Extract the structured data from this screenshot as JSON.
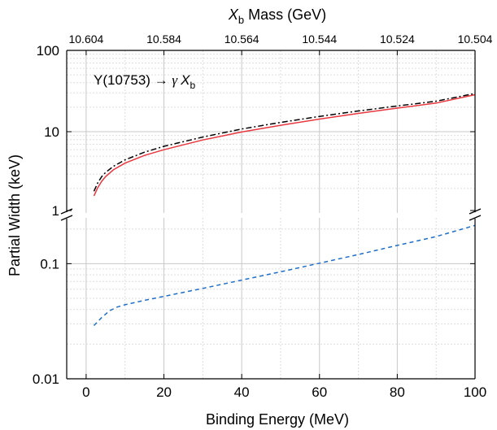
{
  "chart_data": {
    "type": "line",
    "annotation": {
      "prefix": "Υ(10753) → ",
      "gamma": "γ",
      "x": "X",
      "sub": "b"
    },
    "xlabel": "Binding Energy (MeV)",
    "ylabel": "Partial Width (keV)",
    "top_axis": {
      "label_symbol": "X",
      "label_sub": "b",
      "label_rest": " Mass (GeV)",
      "ticks": [
        {
          "at": 0,
          "label": "10.604"
        },
        {
          "at": 20,
          "label": "10.584"
        },
        {
          "at": 40,
          "label": "10.564"
        },
        {
          "at": 60,
          "label": "10.544"
        },
        {
          "at": 80,
          "label": "10.524"
        },
        {
          "at": 100,
          "label": "10.504"
        }
      ]
    },
    "xlim": [
      -5,
      100
    ],
    "x_ticks": [
      {
        "v": 0,
        "label": "0"
      },
      {
        "v": 20,
        "label": "20"
      },
      {
        "v": 40,
        "label": "40"
      },
      {
        "v": 60,
        "label": "60"
      },
      {
        "v": 80,
        "label": "80"
      },
      {
        "v": 100,
        "label": "100"
      }
    ],
    "y_scale": "log, broken axis",
    "y_upper_range": [
      1,
      100
    ],
    "y_lower_range": [
      0.01,
      0.25
    ],
    "y_ticks": [
      {
        "v": 100,
        "label": "100",
        "panel": "upper"
      },
      {
        "v": 10,
        "label": "10",
        "panel": "upper"
      },
      {
        "v": 1,
        "label": "1",
        "panel": "upper"
      },
      {
        "v": 0.1,
        "label": "0.1",
        "panel": "lower"
      },
      {
        "v": 0.01,
        "label": "0.01",
        "panel": "lower"
      }
    ],
    "grid": true,
    "series": [
      {
        "style": "dash-dot",
        "color": "#000000",
        "panel": "upper",
        "x": [
          2,
          3,
          4,
          5,
          7,
          10,
          15,
          20,
          30,
          40,
          50,
          60,
          70,
          80,
          90,
          100
        ],
        "y": [
          1.85,
          2.35,
          2.8,
          3.15,
          3.75,
          4.5,
          5.6,
          6.6,
          8.6,
          10.8,
          13.0,
          15.4,
          18.0,
          20.7,
          23.7,
          29.5
        ]
      },
      {
        "style": "solid",
        "color": "#e8373e",
        "panel": "upper",
        "x": [
          2,
          3,
          4,
          5,
          7,
          10,
          15,
          20,
          30,
          40,
          50,
          60,
          70,
          80,
          90,
          100
        ],
        "y": [
          1.62,
          2.05,
          2.45,
          2.8,
          3.4,
          4.1,
          5.1,
          6.0,
          7.9,
          9.9,
          12.0,
          14.3,
          16.8,
          19.5,
          22.5,
          28.5
        ]
      },
      {
        "style": "dashed",
        "color": "#1f6fc9",
        "panel": "lower",
        "x": [
          2,
          4,
          6,
          8,
          10,
          15,
          20,
          30,
          40,
          50,
          60,
          70,
          80,
          90,
          100
        ],
        "y": [
          0.029,
          0.034,
          0.039,
          0.042,
          0.044,
          0.048,
          0.052,
          0.061,
          0.072,
          0.085,
          0.101,
          0.12,
          0.144,
          0.172,
          0.215
        ]
      }
    ]
  }
}
